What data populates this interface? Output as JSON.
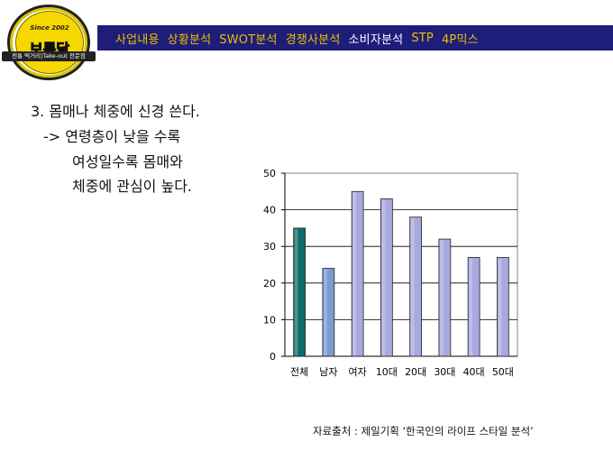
{
  "logo": {
    "since": "Since 2002",
    "name": "보름달",
    "tagline": "전통 떡거리|Take-out 전문점"
  },
  "nav": {
    "items": [
      {
        "label": "사업내용",
        "active": false
      },
      {
        "label": "상황분석",
        "active": false
      },
      {
        "label": "SWOT분석",
        "active": false
      },
      {
        "label": "경쟁사분석",
        "active": false
      },
      {
        "label": "소비자분석",
        "active": true
      },
      {
        "label": "STP",
        "active": false
      },
      {
        "label": "4P믹스",
        "active": false
      }
    ],
    "bar_color": "#1f1d7a",
    "text_color": "#e7c200",
    "active_color": "#ffffff"
  },
  "content": {
    "heading": "3. 몸매나 체중에 신경 쓴다.",
    "line1": "-> 연령층이 낮을 수록",
    "line2": "여성일수록 몸매와",
    "line3": "체중에 관심이 높다."
  },
  "chart_data": {
    "type": "bar",
    "categories": [
      "전체",
      "남자",
      "여자",
      "10대",
      "20대",
      "30대",
      "40대",
      "50대"
    ],
    "values": [
      35,
      24,
      45,
      43,
      38,
      32,
      27,
      27
    ],
    "bar_colors": [
      "#0f6b6b",
      "#7b9ad6",
      "#a9a9e0",
      "#a9a9e0",
      "#a9a9e0",
      "#a9a9e0",
      "#a9a9e0",
      "#a9a9e0"
    ],
    "ylim": [
      0,
      50
    ],
    "yticks": [
      0,
      10,
      20,
      30,
      40,
      50
    ],
    "grid": true,
    "title": "",
    "xlabel": "",
    "ylabel": ""
  },
  "source": {
    "text": "자료출처 : 제일기획 ‘한국인의 라이프 스타일 분석’"
  }
}
